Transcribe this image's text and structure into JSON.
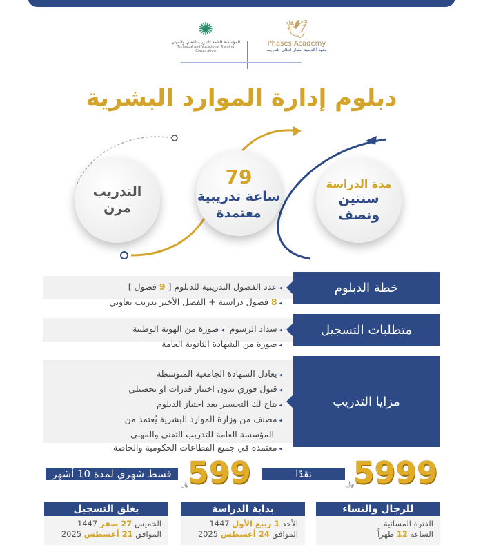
{
  "logos": {
    "academy_name": "Phases Academy",
    "academy_sub": "معهد أكاديمية أطوار العالي للتدريب",
    "tvtc_name": "المؤسسة العامة للتدريب التقني والمهني",
    "tvtc_sub": "Technical and Vocational Training Corporation"
  },
  "title": "دبلوم إدارة الموارد البشرية",
  "circles": [
    {
      "line1": "مدة الدراسة",
      "line2": "سنتين",
      "line3": "ونصف"
    },
    {
      "number": "79",
      "line2": "ساعة تدريبية",
      "line3": "معتمدة"
    },
    {
      "line2": "التدريب",
      "line3": "مرن"
    }
  ],
  "sections": {
    "plan": {
      "label": "خطة الدبلوم",
      "items": [
        {
          "pre": "عدد الفصول التدريبية للدبلوم [ ",
          "num": "9",
          "post": " فصول ]"
        },
        {
          "pre": "",
          "num": "8",
          "post": " فصول دراسية + الفصل الأخير تدريب تعاوني"
        }
      ]
    },
    "registration": {
      "label": "متطلبات التسجيل",
      "items": [
        "سداد الرسوم",
        "صورة من الهوية الوطنية",
        "صورة من الشهادة الثانوية العامة"
      ]
    },
    "advantages": {
      "label": "مزايا التدريب",
      "items": [
        "يعادل الشهادة الجامعية المتوسطة",
        "قبول فوري بدون اختبار قدرات او تحصيلي",
        "يتاح لك التجسير بعد اجتياز الدبلوم",
        "مصنف من وزارة الموارد البشرية يُعتمد من",
        "المؤسسة العامة للتدريب التقني والمهني",
        "معتمدة في جميع القطاعات الحكومية والخاصة"
      ]
    }
  },
  "pricing": {
    "cash_price": "5999",
    "cash_label": "نقدًا",
    "monthly_price": "599",
    "monthly_label": "قسط شهري لمدة 10 أشهر",
    "currency": "﷼"
  },
  "cards": [
    {
      "header": "للرجال والنساء",
      "l1a": "الفترة المسائية",
      "l1n": "",
      "l1b": "",
      "l2a": "الساعة ",
      "l2n": "12",
      "l2b": " ظهراً"
    },
    {
      "header": "بداية الدراسة",
      "l1a": "الأحد ",
      "l1n": "1 ربيع الأول",
      "l1b": " 1447",
      "l2a": "الموافق ",
      "l2n": "24 أغسطس",
      "l2b": " 2025"
    },
    {
      "header": "يغلق التسجيل",
      "l1a": "الخميس ",
      "l1n": "27 صفر",
      "l1b": " 1447",
      "l2a": "الموافق ",
      "l2n": "21 أغسطس",
      "l2b": " 2025"
    }
  ],
  "colors": {
    "brand_blue": "#2d4a86",
    "gold": "#d4a42a"
  }
}
